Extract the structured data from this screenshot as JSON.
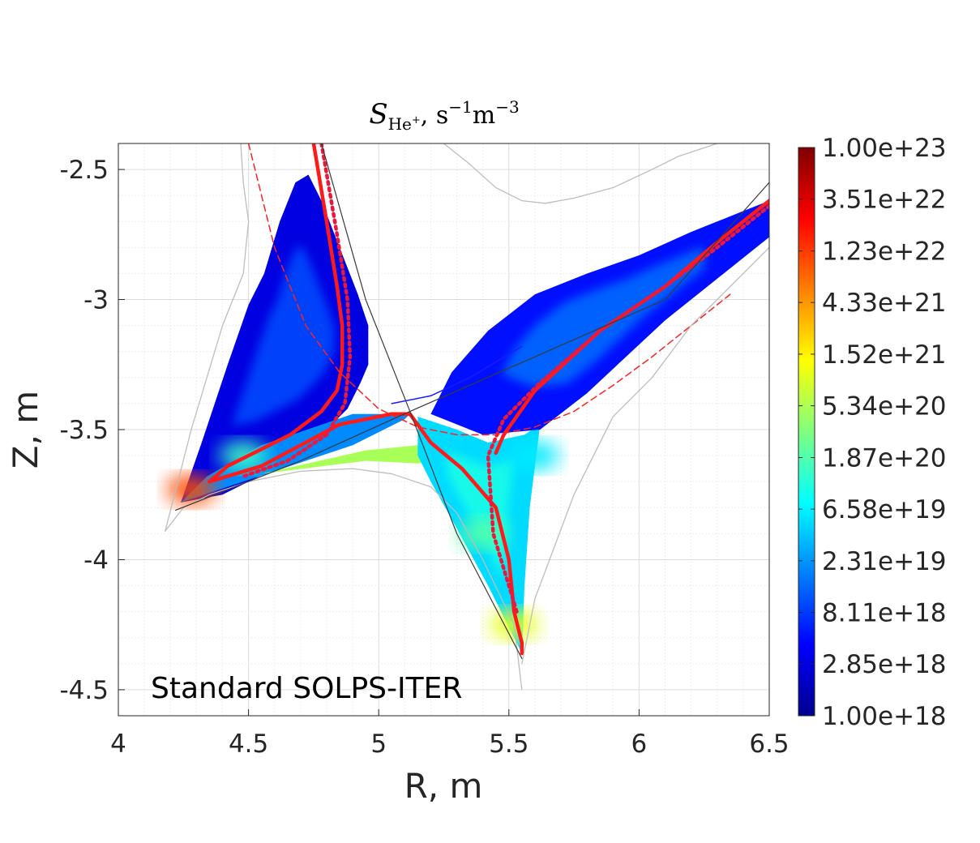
{
  "chart_data": {
    "type": "heatmap",
    "title": {
      "symbol": "S",
      "subscript_main": "He",
      "subscript_sup": "+",
      "units_prefix": ", s",
      "units_exp1": "−1",
      "units_mid": "m",
      "units_exp2": "−3"
    },
    "xlabel": "R, m",
    "ylabel": "Z, m",
    "xlim": [
      4.0,
      6.5
    ],
    "ylim": [
      -4.6,
      -2.4
    ],
    "xticks": [
      "4",
      "4.5",
      "5",
      "5.5",
      "6",
      "6.5"
    ],
    "yticks": [
      "-2.5",
      "-3",
      "-3.5",
      "-4",
      "-4.5"
    ],
    "grid": "on, major and minor",
    "annotation": "Standard SOLPS-ITER",
    "colorbar": {
      "scale": "log",
      "colormap": "jet",
      "range": [
        1e+18,
        1e+23
      ],
      "ticks": [
        "1.00e+23",
        "3.51e+22",
        "1.23e+22",
        "4.33e+21",
        "1.52e+21",
        "5.34e+20",
        "1.87e+20",
        "6.58e+19",
        "2.31e+19",
        "8.11e+18",
        "2.85e+18",
        "1.00e+18"
      ]
    },
    "regions": {
      "inner_leg_upper": [
        [
          4.24,
          -3.78
        ],
        [
          4.32,
          -3.55
        ],
        [
          4.42,
          -3.25
        ],
        [
          4.5,
          -3.02
        ],
        [
          4.56,
          -2.9
        ],
        [
          4.62,
          -2.7
        ],
        [
          4.68,
          -2.55
        ],
        [
          4.73,
          -2.52
        ],
        [
          4.78,
          -2.62
        ],
        [
          4.85,
          -2.8
        ],
        [
          4.92,
          -2.98
        ],
        [
          4.96,
          -3.1
        ],
        [
          4.96,
          -3.25
        ],
        [
          4.93,
          -3.32
        ],
        [
          4.88,
          -3.42
        ],
        [
          4.7,
          -3.6
        ],
        [
          4.4,
          -3.75
        ]
      ],
      "inner_leg_lower": [
        [
          4.24,
          -3.78
        ],
        [
          4.6,
          -3.66
        ],
        [
          4.9,
          -3.56
        ],
        [
          5.1,
          -3.46
        ],
        [
          5.12,
          -3.44
        ],
        [
          4.9,
          -3.44
        ],
        [
          4.55,
          -3.56
        ],
        [
          4.34,
          -3.68
        ]
      ],
      "private_flux": [
        [
          4.55,
          -3.67
        ],
        [
          4.95,
          -3.58
        ],
        [
          5.15,
          -3.56
        ],
        [
          5.25,
          -3.62
        ],
        [
          5.15,
          -3.63
        ],
        [
          4.95,
          -3.62
        ]
      ],
      "outer_leg_lower": [
        [
          5.15,
          -3.45
        ],
        [
          5.3,
          -3.5
        ],
        [
          5.42,
          -3.55
        ],
        [
          5.56,
          -3.52
        ],
        [
          5.62,
          -3.48
        ],
        [
          5.58,
          -3.8
        ],
        [
          5.56,
          -4.1
        ],
        [
          5.55,
          -4.36
        ],
        [
          5.42,
          -4.1
        ],
        [
          5.3,
          -3.88
        ],
        [
          5.2,
          -3.7
        ],
        [
          5.15,
          -3.6
        ]
      ],
      "outer_leg_upper": [
        [
          5.28,
          -3.28
        ],
        [
          5.42,
          -3.12
        ],
        [
          5.6,
          -2.98
        ],
        [
          5.8,
          -2.9
        ],
        [
          6.0,
          -2.83
        ],
        [
          6.2,
          -2.74
        ],
        [
          6.4,
          -2.66
        ],
        [
          6.5,
          -2.62
        ],
        [
          6.5,
          -2.76
        ],
        [
          6.3,
          -2.92
        ],
        [
          6.1,
          -3.08
        ],
        [
          5.95,
          -3.22
        ],
        [
          5.8,
          -3.36
        ],
        [
          5.62,
          -3.5
        ],
        [
          5.4,
          -3.52
        ],
        [
          5.2,
          -3.44
        ]
      ]
    },
    "hotspots": [
      {
        "region": "inner_target",
        "R": 4.28,
        "Z": -3.73,
        "value": 1e+22
      },
      {
        "region": "inner_leg",
        "R": 4.48,
        "Z": -3.6,
        "value": 1.5e+20
      },
      {
        "region": "outer_target",
        "R": 5.52,
        "Z": -4.25,
        "value": 1e+21
      },
      {
        "region": "outer_leg",
        "R": 5.4,
        "Z": -3.9,
        "value": 2e+20
      },
      {
        "region": "outer_leg_mid",
        "R": 5.6,
        "Z": -3.6,
        "value": 6e+19
      }
    ],
    "series": [
      {
        "style": "solid red",
        "x": [
          4.75,
          4.8,
          4.84,
          4.86,
          4.86,
          4.84,
          4.78,
          4.66,
          4.42,
          4.35,
          4.55,
          4.85,
          5.05,
          5.12,
          5.2,
          5.32,
          5.45,
          5.5,
          5.52,
          5.55,
          5.55
        ],
        "y": [
          -2.4,
          -2.7,
          -2.95,
          -3.1,
          -3.25,
          -3.35,
          -3.43,
          -3.52,
          -3.64,
          -3.7,
          -3.64,
          -3.48,
          -3.44,
          -3.44,
          -3.55,
          -3.65,
          -3.8,
          -4.0,
          -4.2,
          -4.32,
          -4.36
        ]
      },
      {
        "style": "dotted red",
        "x": [
          4.78,
          4.84,
          4.88,
          4.89,
          4.87,
          4.8,
          4.65,
          4.48
        ],
        "y": [
          -2.4,
          -2.75,
          -3.0,
          -3.22,
          -3.4,
          -3.52,
          -3.62,
          -3.68
        ]
      },
      {
        "style": "solid red",
        "x": [
          5.45,
          5.48,
          5.6,
          5.85,
          6.1,
          6.3,
          6.5
        ],
        "y": [
          -3.59,
          -3.52,
          -3.35,
          -3.12,
          -2.95,
          -2.78,
          -2.62
        ]
      },
      {
        "style": "dotted red",
        "x": [
          5.53,
          5.44,
          5.42,
          5.48,
          5.62,
          5.85,
          6.1,
          6.3,
          6.5
        ],
        "y": [
          -4.2,
          -3.9,
          -3.6,
          -3.46,
          -3.32,
          -3.12,
          -2.95,
          -2.8,
          -2.64
        ]
      },
      {
        "style": "dashed red",
        "x": [
          4.5,
          4.6,
          4.72,
          4.85,
          5.0,
          5.15,
          5.3,
          5.45,
          5.6,
          5.75,
          5.9,
          6.05,
          6.2,
          6.35
        ],
        "y": [
          -2.4,
          -2.8,
          -3.1,
          -3.28,
          -3.42,
          -3.49,
          -3.52,
          -3.52,
          -3.49,
          -3.43,
          -3.33,
          -3.22,
          -3.1,
          -2.98
        ]
      },
      {
        "style": "thin gray",
        "x": [
          4.18,
          4.25,
          4.35,
          4.5,
          4.7,
          4.9,
          5.05,
          5.2,
          5.3,
          5.4,
          5.52,
          5.55
        ],
        "y": [
          -3.89,
          -3.8,
          -3.75,
          -3.7,
          -3.66,
          -3.65,
          -3.67,
          -3.72,
          -3.82,
          -4.0,
          -4.25,
          -4.5
        ]
      },
      {
        "style": "thin gray",
        "x": [
          4.18,
          4.28,
          4.4,
          4.48,
          4.5,
          4.48,
          4.47
        ],
        "y": [
          -3.89,
          -3.5,
          -3.1,
          -2.9,
          -2.7,
          -2.55,
          -2.4
        ]
      },
      {
        "style": "thin gray",
        "x": [
          5.55,
          5.6,
          5.75,
          5.9,
          6.05,
          6.2,
          6.35,
          6.5
        ],
        "y": [
          -4.4,
          -4.15,
          -3.75,
          -3.45,
          -3.3,
          -3.1,
          -2.95,
          -2.8
        ]
      },
      {
        "style": "thin gray",
        "x": [
          5.25,
          5.35,
          5.45,
          5.55,
          5.64,
          5.75,
          5.9,
          6.05,
          6.15,
          6.3
        ],
        "y": [
          -2.4,
          -2.48,
          -2.57,
          -2.62,
          -2.63,
          -2.61,
          -2.57,
          -2.5,
          -2.45,
          -2.4
        ]
      },
      {
        "style": "thin black",
        "x": [
          4.78,
          4.95,
          5.12,
          5.3,
          5.55
        ],
        "y": [
          -2.4,
          -3.0,
          -3.43,
          -3.9,
          -4.38
        ]
      },
      {
        "style": "thin black",
        "x": [
          4.22,
          4.7,
          5.12,
          5.6,
          6.1,
          6.5
        ],
        "y": [
          -3.81,
          -3.62,
          -3.43,
          -3.22,
          -3.0,
          -2.55
        ]
      },
      {
        "style": "thin blue",
        "x": [
          5.05,
          5.2,
          5.35,
          5.55
        ],
        "y": [
          -3.4,
          -3.37,
          -3.3,
          -3.18
        ]
      }
    ]
  }
}
